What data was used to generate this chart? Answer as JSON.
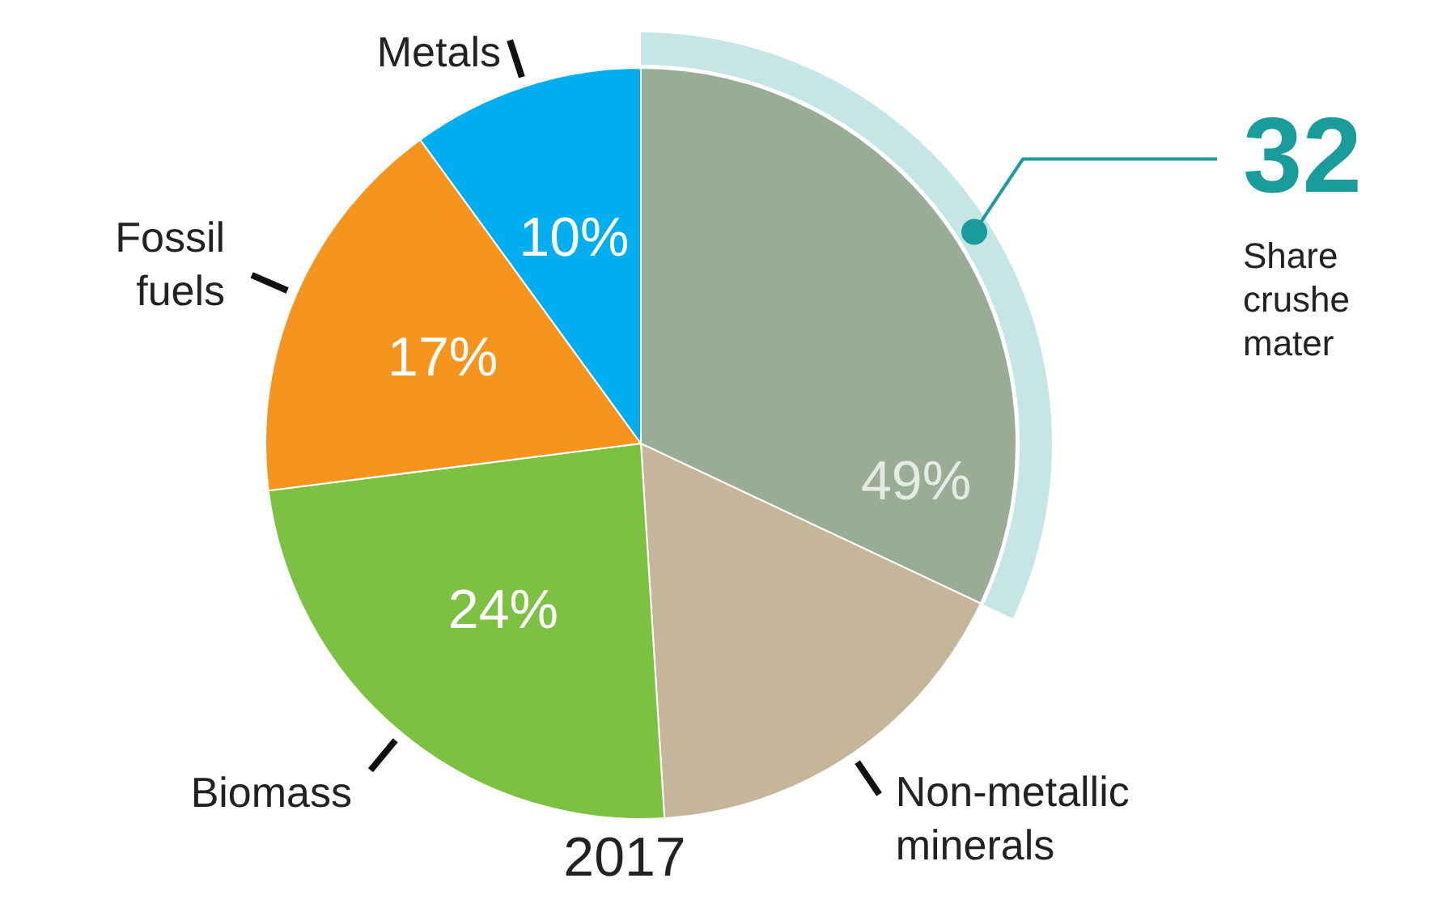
{
  "chart_data": {
    "type": "pie",
    "title": "2017",
    "categories": [
      null,
      "Non-metallic minerals",
      "Biomass",
      "Fossil fuels",
      "Metals"
    ],
    "values": [
      32,
      17,
      24,
      17,
      10
    ],
    "colors": [
      "#9aab96",
      "#c5b59b",
      "#7dc142",
      "#f7941d",
      "#00aeef"
    ],
    "value_labels": [
      null,
      null,
      "24%",
      "17%",
      "10%"
    ],
    "annotations": [
      "49%",
      "32",
      "Share",
      "crushe",
      "mater"
    ]
  }
}
